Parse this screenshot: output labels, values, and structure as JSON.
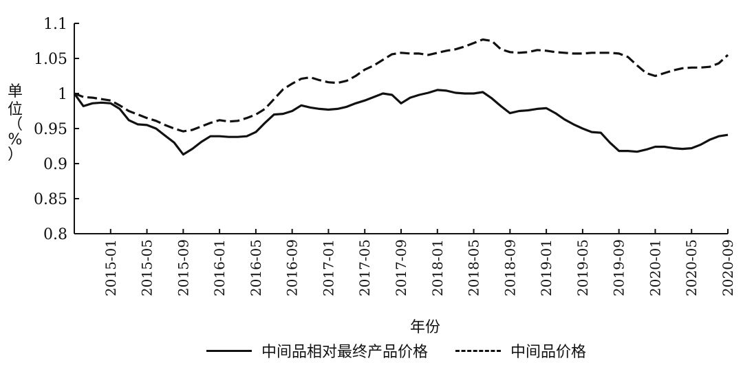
{
  "chart_data": {
    "type": "line",
    "xlabel": "年份",
    "ylabel_chars": [
      "单",
      "位",
      "（",
      "%",
      "）"
    ],
    "ylim": [
      0.8,
      1.1
    ],
    "yticks": [
      "0.8",
      "0.85",
      "0.9",
      "0.95",
      "1",
      "1.05",
      "1.1"
    ],
    "xlim": [
      "2014-09",
      "2020-09"
    ],
    "xticks": [
      "2015-01",
      "2015-05",
      "2015-09",
      "2016-01",
      "2016-05",
      "2016-09",
      "2017-01",
      "2017-05",
      "2017-09",
      "2018-01",
      "2018-05",
      "2018-09",
      "2019-01",
      "2019-05",
      "2019-09",
      "2020-01",
      "2020-05",
      "2020-09"
    ],
    "series": [
      {
        "name": "中间品相对最终产品价格",
        "style": "solid",
        "x": [
          "2014-09",
          "2014-10",
          "2014-11",
          "2014-12",
          "2015-01",
          "2015-02",
          "2015-03",
          "2015-04",
          "2015-05",
          "2015-06",
          "2015-07",
          "2015-08",
          "2015-09",
          "2015-10",
          "2015-11",
          "2015-12",
          "2016-01",
          "2016-02",
          "2016-03",
          "2016-04",
          "2016-05",
          "2016-06",
          "2016-07",
          "2016-08",
          "2016-09",
          "2016-10",
          "2016-11",
          "2016-12",
          "2017-01",
          "2017-02",
          "2017-03",
          "2017-04",
          "2017-05",
          "2017-06",
          "2017-07",
          "2017-08",
          "2017-09",
          "2017-10",
          "2017-11",
          "2017-12",
          "2018-01",
          "2018-02",
          "2018-03",
          "2018-04",
          "2018-05",
          "2018-06",
          "2018-07",
          "2018-08",
          "2018-09",
          "2018-10",
          "2018-11",
          "2018-12",
          "2019-01",
          "2019-02",
          "2019-03",
          "2019-04",
          "2019-05",
          "2019-06",
          "2019-07",
          "2019-08",
          "2019-09",
          "2019-10",
          "2019-11",
          "2019-12",
          "2020-01",
          "2020-02",
          "2020-03",
          "2020-04",
          "2020-05",
          "2020-06",
          "2020-07",
          "2020-08",
          "2020-09"
        ],
        "values": [
          1.0,
          0.982,
          0.986,
          0.987,
          0.986,
          0.978,
          0.962,
          0.956,
          0.955,
          0.95,
          0.94,
          0.93,
          0.913,
          0.921,
          0.931,
          0.939,
          0.939,
          0.938,
          0.938,
          0.939,
          0.945,
          0.958,
          0.97,
          0.971,
          0.975,
          0.983,
          0.98,
          0.978,
          0.977,
          0.978,
          0.981,
          0.986,
          0.99,
          0.995,
          1.0,
          0.998,
          0.986,
          0.994,
          0.998,
          1.001,
          1.005,
          1.004,
          1.001,
          1.0,
          1.0,
          1.002,
          0.993,
          0.982,
          0.972,
          0.975,
          0.976,
          0.978,
          0.979,
          0.972,
          0.963,
          0.956,
          0.95,
          0.945,
          0.944,
          0.93,
          0.918,
          0.918,
          0.917,
          0.92,
          0.924,
          0.924,
          0.922,
          0.921,
          0.922,
          0.927,
          0.934,
          0.939,
          0.941
        ]
      },
      {
        "name": "中间品价格",
        "style": "dashed",
        "x": [
          "2014-09",
          "2014-10",
          "2014-11",
          "2014-12",
          "2015-01",
          "2015-02",
          "2015-03",
          "2015-04",
          "2015-05",
          "2015-06",
          "2015-07",
          "2015-08",
          "2015-09",
          "2015-10",
          "2015-11",
          "2015-12",
          "2016-01",
          "2016-02",
          "2016-03",
          "2016-04",
          "2016-05",
          "2016-06",
          "2016-07",
          "2016-08",
          "2016-09",
          "2016-10",
          "2016-11",
          "2016-12",
          "2017-01",
          "2017-02",
          "2017-03",
          "2017-04",
          "2017-05",
          "2017-06",
          "2017-07",
          "2017-08",
          "2017-09",
          "2017-10",
          "2017-11",
          "2017-12",
          "2018-01",
          "2018-02",
          "2018-03",
          "2018-04",
          "2018-05",
          "2018-06",
          "2018-07",
          "2018-08",
          "2018-09",
          "2018-10",
          "2018-11",
          "2018-12",
          "2019-01",
          "2019-02",
          "2019-03",
          "2019-04",
          "2019-05",
          "2019-06",
          "2019-07",
          "2019-08",
          "2019-09",
          "2019-10",
          "2019-11",
          "2019-12",
          "2020-01",
          "2020-02",
          "2020-03",
          "2020-04",
          "2020-05",
          "2020-06",
          "2020-07",
          "2020-08",
          "2020-09"
        ],
        "values": [
          1.0,
          0.995,
          0.994,
          0.992,
          0.99,
          0.983,
          0.975,
          0.97,
          0.965,
          0.961,
          0.955,
          0.95,
          0.946,
          0.948,
          0.953,
          0.958,
          0.962,
          0.96,
          0.961,
          0.965,
          0.97,
          0.978,
          0.992,
          1.006,
          1.014,
          1.021,
          1.023,
          1.019,
          1.016,
          1.015,
          1.018,
          1.025,
          1.034,
          1.04,
          1.048,
          1.056,
          1.058,
          1.057,
          1.057,
          1.055,
          1.058,
          1.061,
          1.063,
          1.067,
          1.072,
          1.077,
          1.075,
          1.063,
          1.059,
          1.058,
          1.059,
          1.062,
          1.061,
          1.059,
          1.058,
          1.057,
          1.057,
          1.058,
          1.058,
          1.058,
          1.057,
          1.052,
          1.04,
          1.029,
          1.025,
          1.029,
          1.033,
          1.036,
          1.037,
          1.037,
          1.038,
          1.043,
          1.055
        ]
      }
    ]
  }
}
